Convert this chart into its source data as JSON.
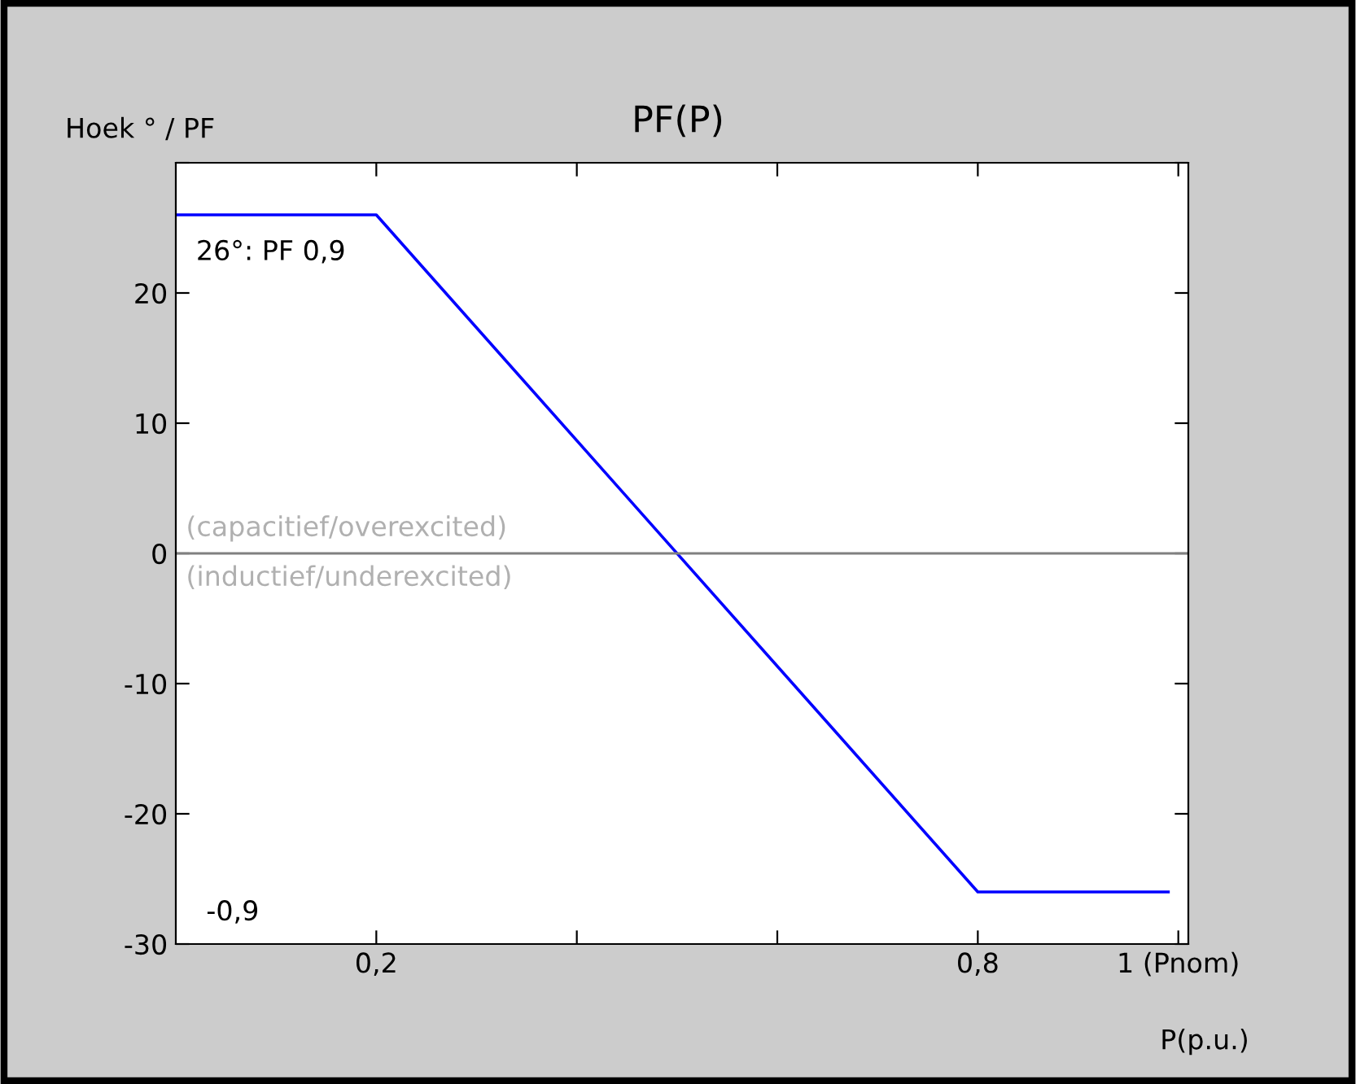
{
  "chart_data": {
    "type": "line",
    "title": "PF(P)",
    "xlabel": "P(p.u.)",
    "ylabel": "Hoek ° / PF",
    "x": [
      0,
      0.2,
      0.8,
      0.99
    ],
    "series": [
      {
        "color": "#0000ff",
        "values": [
          26,
          26,
          -26,
          -26
        ]
      }
    ],
    "xlim": [
      0,
      1.01
    ],
    "xticks": [
      {
        "value": 0.2,
        "label": "0,2"
      },
      {
        "value": 0.4,
        "label": null
      },
      {
        "value": 0.6,
        "label": null
      },
      {
        "value": 0.8,
        "label": "0,8"
      },
      {
        "value": 1,
        "label": "1 (Pnom)"
      }
    ],
    "ylim": [
      -30,
      30
    ],
    "yticks": [
      -30,
      -20,
      -10,
      0,
      10,
      20,
      {
        "value": 30,
        "label": null
      }
    ],
    "ref_lines": [
      {
        "axis": "y",
        "value": 0,
        "color": "#808080"
      }
    ],
    "annotations": [
      "26°: PF 0,9",
      "(capacitief/overexcited)",
      "(inductief/underexcited)",
      "-0,9"
    ],
    "grid": false,
    "legend": false
  }
}
